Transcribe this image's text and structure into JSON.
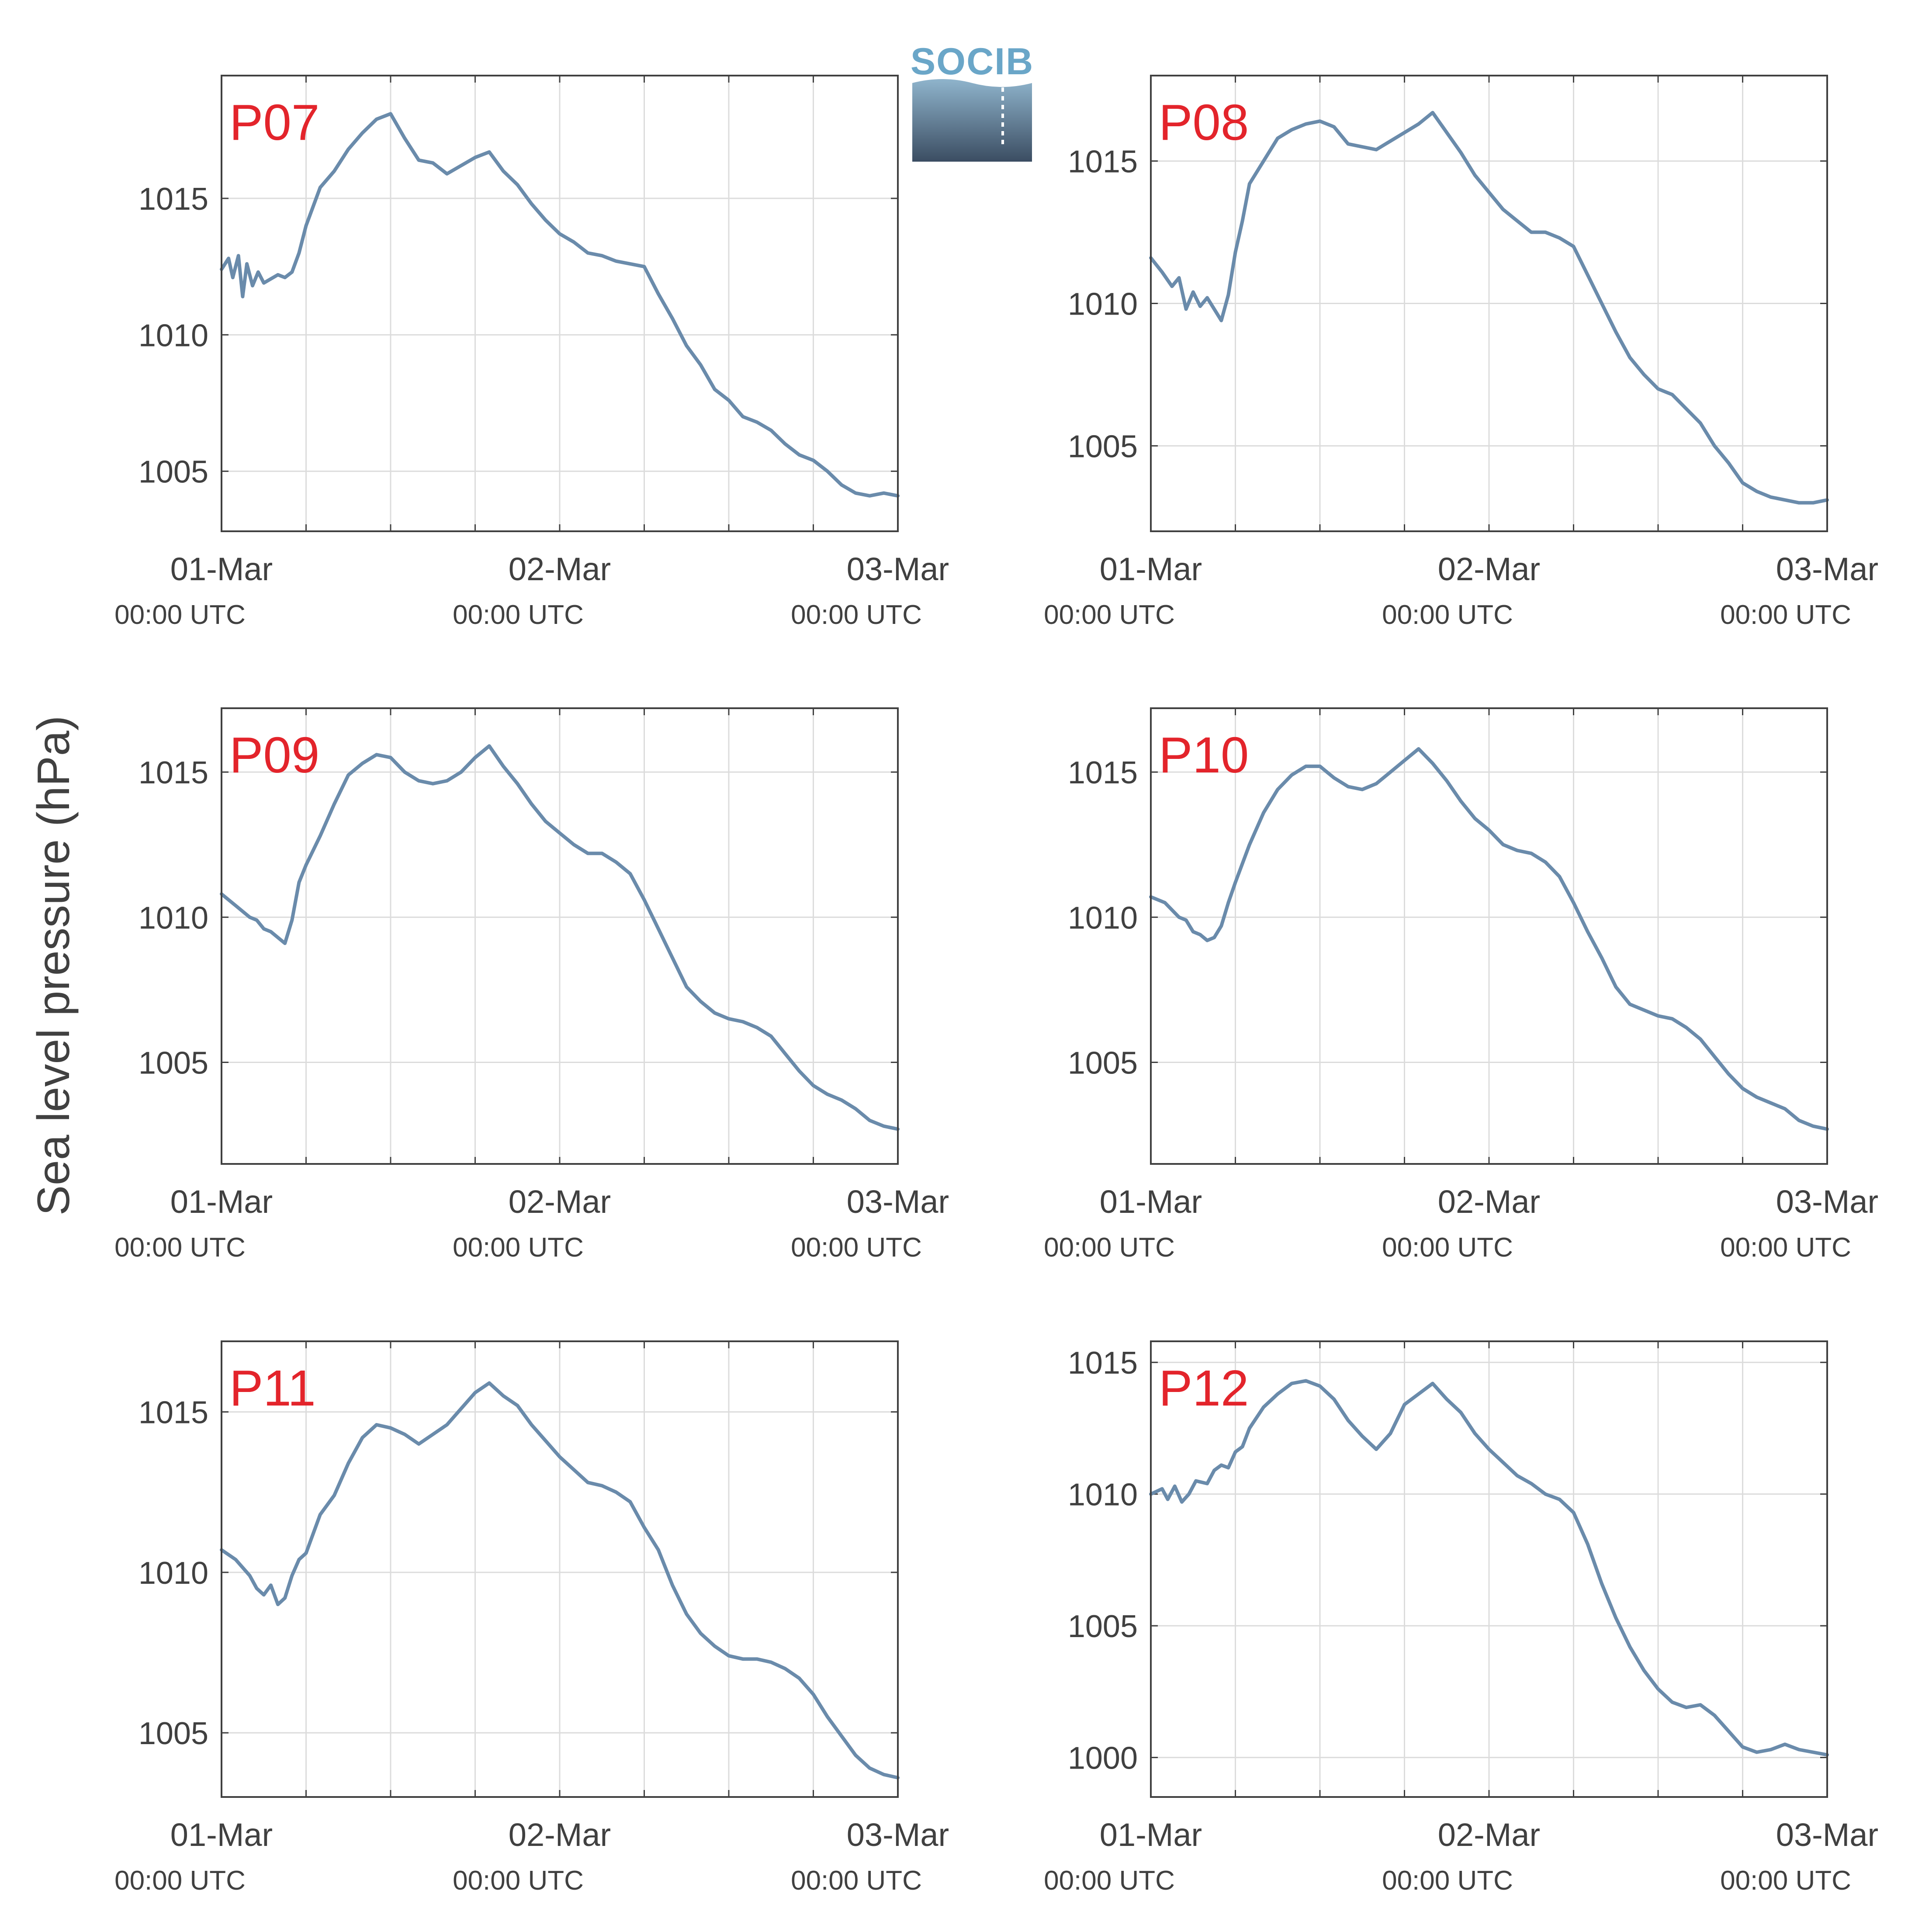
{
  "figure": {
    "ylabel": "Sea level pressure (hPa)",
    "logo_text": "SOCIB",
    "colors": {
      "line": "#6a8bab",
      "panel_label": "#e3242b",
      "grid": "#dcdcdc",
      "axis": "#404040",
      "logo_top": "#6aa6c8",
      "logo_bottom": "#3b4d62"
    },
    "x_tick_date_labels": [
      "01-Mar",
      "02-Mar",
      "03-Mar"
    ],
    "x_tick_time_labels": [
      "00:00 UTC",
      "00:00 UTC",
      "00:00 UTC"
    ]
  },
  "chart_data": [
    {
      "type": "line",
      "label": "P07",
      "ylim": [
        1002.8,
        1019.5
      ],
      "yticks": [
        1005,
        1010,
        1015
      ],
      "xlim": [
        0,
        48
      ],
      "xlabel": "",
      "ylabel": "Sea level pressure (hPa)",
      "grid": true,
      "x": [
        0,
        0.5,
        0.8,
        1.2,
        1.5,
        1.8,
        2.2,
        2.6,
        3.0,
        4.0,
        4.5,
        5.0,
        5.5,
        6.0,
        7.0,
        8.0,
        9.0,
        10.0,
        11.0,
        12.0,
        13.0,
        14.0,
        15.0,
        16.0,
        17.0,
        18.0,
        19.0,
        20.0,
        21.0,
        22.0,
        23.0,
        24.0,
        25.0,
        26.0,
        27.0,
        28.0,
        29.0,
        30.0,
        31.0,
        32.0,
        33.0,
        34.0,
        35.0,
        36.0,
        37.0,
        38.0,
        39.0,
        40.0,
        41.0,
        42.0,
        43.0,
        44.0,
        45.0,
        46.0,
        47.0,
        48.0
      ],
      "values": [
        1012.4,
        1012.8,
        1012.1,
        1012.9,
        1011.4,
        1012.6,
        1011.8,
        1012.3,
        1011.9,
        1012.2,
        1012.1,
        1012.3,
        1013.0,
        1014.0,
        1015.4,
        1016.0,
        1016.8,
        1017.4,
        1017.9,
        1018.1,
        1017.2,
        1016.4,
        1016.3,
        1015.9,
        1016.2,
        1016.5,
        1016.7,
        1016.0,
        1015.5,
        1014.8,
        1014.2,
        1013.7,
        1013.4,
        1013.0,
        1012.9,
        1012.7,
        1012.6,
        1012.5,
        1011.5,
        1010.6,
        1009.6,
        1008.9,
        1008.0,
        1007.6,
        1007.0,
        1006.8,
        1006.5,
        1006.0,
        1005.6,
        1005.4,
        1005.0,
        1004.5,
        1004.2,
        1004.1,
        1004.2,
        1004.1
      ]
    },
    {
      "type": "line",
      "label": "P08",
      "ylim": [
        1002.0,
        1018.0
      ],
      "yticks": [
        1005,
        1010,
        1015
      ],
      "xlim": [
        0,
        48
      ],
      "xlabel": "",
      "ylabel": "Sea level pressure (hPa)",
      "grid": true,
      "x": [
        0,
        0.8,
        1.5,
        2.0,
        2.5,
        3.0,
        3.5,
        4.0,
        4.5,
        5.0,
        5.5,
        6.0,
        6.5,
        7.0,
        8.0,
        9.0,
        10.0,
        11.0,
        12.0,
        13.0,
        14.0,
        15.0,
        16.0,
        17.0,
        18.0,
        19.0,
        20.0,
        21.0,
        22.0,
        23.0,
        24.0,
        25.0,
        26.0,
        27.0,
        28.0,
        29.0,
        30.0,
        31.0,
        32.0,
        33.0,
        34.0,
        35.0,
        36.0,
        37.0,
        38.0,
        39.0,
        40.0,
        41.0,
        42.0,
        43.0,
        44.0,
        45.0,
        46.0,
        47.0,
        48.0
      ],
      "values": [
        1011.6,
        1011.1,
        1010.6,
        1010.9,
        1009.8,
        1010.4,
        1009.9,
        1010.2,
        1009.8,
        1009.4,
        1010.3,
        1011.8,
        1012.9,
        1014.2,
        1015.0,
        1015.8,
        1016.1,
        1016.3,
        1016.4,
        1016.2,
        1015.6,
        1015.5,
        1015.4,
        1015.7,
        1016.0,
        1016.3,
        1016.7,
        1016.0,
        1015.3,
        1014.5,
        1013.9,
        1013.3,
        1012.9,
        1012.5,
        1012.5,
        1012.3,
        1012.0,
        1011.0,
        1010.0,
        1009.0,
        1008.1,
        1007.5,
        1007.0,
        1006.8,
        1006.3,
        1005.8,
        1005.0,
        1004.4,
        1003.7,
        1003.4,
        1003.2,
        1003.1,
        1003.0,
        1003.0,
        1003.1
      ]
    },
    {
      "type": "line",
      "label": "P09",
      "ylim": [
        1001.5,
        1017.2
      ],
      "yticks": [
        1005,
        1010,
        1015
      ],
      "xlim": [
        0,
        48
      ],
      "xlabel": "",
      "ylabel": "Sea level pressure (hPa)",
      "grid": true,
      "x": [
        0,
        1.0,
        2.0,
        2.5,
        3.0,
        3.5,
        4.0,
        4.5,
        5.0,
        5.5,
        6.0,
        7.0,
        8.0,
        9.0,
        10.0,
        11.0,
        12.0,
        13.0,
        14.0,
        15.0,
        16.0,
        17.0,
        18.0,
        19.0,
        20.0,
        21.0,
        22.0,
        23.0,
        24.0,
        25.0,
        26.0,
        27.0,
        28.0,
        29.0,
        30.0,
        31.0,
        32.0,
        33.0,
        34.0,
        35.0,
        36.0,
        37.0,
        38.0,
        39.0,
        40.0,
        41.0,
        42.0,
        43.0,
        44.0,
        45.0,
        46.0,
        47.0,
        48.0
      ],
      "values": [
        1010.8,
        1010.4,
        1010.0,
        1009.9,
        1009.6,
        1009.5,
        1009.3,
        1009.1,
        1009.9,
        1011.2,
        1011.8,
        1012.8,
        1013.9,
        1014.9,
        1015.3,
        1015.6,
        1015.5,
        1015.0,
        1014.7,
        1014.6,
        1014.7,
        1015.0,
        1015.5,
        1015.9,
        1015.2,
        1014.6,
        1013.9,
        1013.3,
        1012.9,
        1012.5,
        1012.2,
        1012.2,
        1011.9,
        1011.5,
        1010.6,
        1009.6,
        1008.6,
        1007.6,
        1007.1,
        1006.7,
        1006.5,
        1006.4,
        1006.2,
        1005.9,
        1005.3,
        1004.7,
        1004.2,
        1003.9,
        1003.7,
        1003.4,
        1003.0,
        1002.8,
        1002.7
      ]
    },
    {
      "type": "line",
      "label": "P10",
      "ylim": [
        1001.5,
        1017.2
      ],
      "yticks": [
        1005,
        1010,
        1015
      ],
      "xlim": [
        0,
        48
      ],
      "xlabel": "",
      "ylabel": "Sea level pressure (hPa)",
      "grid": true,
      "x": [
        0,
        1.0,
        2.0,
        2.5,
        3.0,
        3.5,
        4.0,
        4.5,
        5.0,
        5.5,
        6.0,
        7.0,
        8.0,
        9.0,
        10.0,
        11.0,
        12.0,
        13.0,
        14.0,
        15.0,
        16.0,
        17.0,
        18.0,
        19.0,
        20.0,
        21.0,
        22.0,
        23.0,
        24.0,
        25.0,
        26.0,
        27.0,
        28.0,
        29.0,
        30.0,
        31.0,
        32.0,
        33.0,
        34.0,
        35.0,
        36.0,
        37.0,
        38.0,
        39.0,
        40.0,
        41.0,
        42.0,
        43.0,
        44.0,
        45.0,
        46.0,
        47.0,
        48.0
      ],
      "values": [
        1010.7,
        1010.5,
        1010.0,
        1009.9,
        1009.5,
        1009.4,
        1009.2,
        1009.3,
        1009.7,
        1010.5,
        1011.2,
        1012.5,
        1013.6,
        1014.4,
        1014.9,
        1015.2,
        1015.2,
        1014.8,
        1014.5,
        1014.4,
        1014.6,
        1015.0,
        1015.4,
        1015.8,
        1015.3,
        1014.7,
        1014.0,
        1013.4,
        1013.0,
        1012.5,
        1012.3,
        1012.2,
        1011.9,
        1011.4,
        1010.5,
        1009.5,
        1008.6,
        1007.6,
        1007.0,
        1006.8,
        1006.6,
        1006.5,
        1006.2,
        1005.8,
        1005.2,
        1004.6,
        1004.1,
        1003.8,
        1003.6,
        1003.4,
        1003.0,
        1002.8,
        1002.7
      ]
    },
    {
      "type": "line",
      "label": "P11",
      "ylim": [
        1003.0,
        1017.2
      ],
      "yticks": [
        1005,
        1010,
        1015
      ],
      "xlim": [
        0,
        48
      ],
      "xlabel": "",
      "ylabel": "Sea level pressure (hPa)",
      "grid": true,
      "x": [
        0,
        1.0,
        2.0,
        2.5,
        3.0,
        3.5,
        4.0,
        4.5,
        5.0,
        5.5,
        6.0,
        7.0,
        8.0,
        9.0,
        10.0,
        11.0,
        12.0,
        13.0,
        14.0,
        15.0,
        16.0,
        17.0,
        18.0,
        19.0,
        20.0,
        21.0,
        22.0,
        23.0,
        24.0,
        25.0,
        26.0,
        27.0,
        28.0,
        29.0,
        30.0,
        31.0,
        32.0,
        33.0,
        34.0,
        35.0,
        36.0,
        37.0,
        38.0,
        39.0,
        40.0,
        41.0,
        42.0,
        43.0,
        44.0,
        45.0,
        46.0,
        47.0,
        48.0
      ],
      "values": [
        1010.7,
        1010.4,
        1009.9,
        1009.5,
        1009.3,
        1009.6,
        1009.0,
        1009.2,
        1009.9,
        1010.4,
        1010.6,
        1011.8,
        1012.4,
        1013.4,
        1014.2,
        1014.6,
        1014.5,
        1014.3,
        1014.0,
        1014.3,
        1014.6,
        1015.1,
        1015.6,
        1015.9,
        1015.5,
        1015.2,
        1014.6,
        1014.1,
        1013.6,
        1013.2,
        1012.8,
        1012.7,
        1012.5,
        1012.2,
        1011.4,
        1010.7,
        1009.6,
        1008.7,
        1008.1,
        1007.7,
        1007.4,
        1007.3,
        1007.3,
        1007.2,
        1007.0,
        1006.7,
        1006.2,
        1005.5,
        1004.9,
        1004.3,
        1003.9,
        1003.7,
        1003.6
      ]
    },
    {
      "type": "line",
      "label": "P12",
      "ylim": [
        998.5,
        1015.8
      ],
      "yticks": [
        1000,
        1005,
        1010,
        1015
      ],
      "xlim": [
        0,
        48
      ],
      "xlabel": "",
      "ylabel": "Sea level pressure (hPa)",
      "grid": true,
      "x": [
        0,
        0.8,
        1.2,
        1.7,
        2.2,
        2.7,
        3.2,
        4.0,
        4.5,
        5.0,
        5.5,
        6.0,
        6.5,
        7.0,
        8.0,
        9.0,
        10.0,
        11.0,
        12.0,
        13.0,
        14.0,
        15.0,
        16.0,
        17.0,
        18.0,
        19.0,
        20.0,
        21.0,
        22.0,
        23.0,
        24.0,
        25.0,
        26.0,
        27.0,
        28.0,
        29.0,
        30.0,
        31.0,
        32.0,
        33.0,
        34.0,
        35.0,
        36.0,
        37.0,
        38.0,
        39.0,
        40.0,
        41.0,
        42.0,
        43.0,
        44.0,
        45.0,
        46.0,
        47.0,
        48.0
      ],
      "values": [
        1010.0,
        1010.2,
        1009.8,
        1010.3,
        1009.7,
        1010.0,
        1010.5,
        1010.4,
        1010.9,
        1011.1,
        1011.0,
        1011.6,
        1011.8,
        1012.5,
        1013.3,
        1013.8,
        1014.2,
        1014.3,
        1014.1,
        1013.6,
        1012.8,
        1012.2,
        1011.7,
        1012.3,
        1013.4,
        1013.8,
        1014.2,
        1013.6,
        1013.1,
        1012.3,
        1011.7,
        1011.2,
        1010.7,
        1010.4,
        1010.0,
        1009.8,
        1009.3,
        1008.1,
        1006.6,
        1005.3,
        1004.2,
        1003.3,
        1002.6,
        1002.1,
        1001.9,
        1002.0,
        1001.6,
        1001.0,
        1000.4,
        1000.2,
        1000.3,
        1000.5,
        1000.3,
        1000.2,
        1000.1
      ]
    }
  ]
}
